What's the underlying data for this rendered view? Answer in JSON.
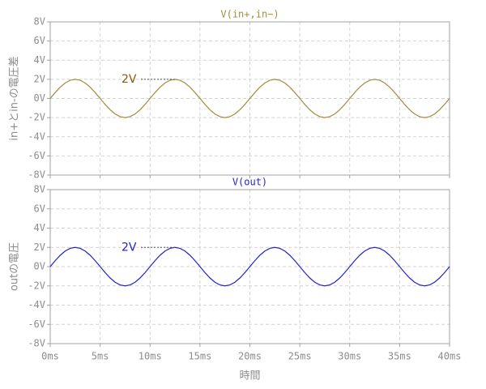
{
  "chart_data": [
    {
      "type": "line",
      "title": "V(in+,in−)",
      "ylabel": "in+とin-の電圧差",
      "grid": true,
      "xlim": [
        0,
        40
      ],
      "ylim": [
        -8,
        8
      ],
      "yticks": [
        {
          "value": -8,
          "label": "-8V"
        },
        {
          "value": -6,
          "label": "-6V"
        },
        {
          "value": -4,
          "label": "-4V"
        },
        {
          "value": -2,
          "label": "-2V"
        },
        {
          "value": 0,
          "label": "0V"
        },
        {
          "value": 2,
          "label": "2V"
        },
        {
          "value": 4,
          "label": "4V"
        },
        {
          "value": 6,
          "label": "6V"
        },
        {
          "value": 8,
          "label": "8V"
        }
      ],
      "x": [
        0,
        0.5,
        1,
        1.5,
        2,
        2.5,
        3,
        3.5,
        4,
        4.5,
        5,
        5.5,
        6,
        6.5,
        7,
        7.5,
        8,
        8.5,
        9,
        9.5,
        10,
        10.5,
        11,
        11.5,
        12,
        12.5,
        13,
        13.5,
        14,
        14.5,
        15,
        15.5,
        16,
        16.5,
        17,
        17.5,
        18,
        18.5,
        19,
        19.5,
        20,
        20.5,
        21,
        21.5,
        22,
        22.5,
        23,
        23.5,
        24,
        24.5,
        25,
        25.5,
        26,
        26.5,
        27,
        27.5,
        28,
        28.5,
        29,
        29.5,
        30,
        30.5,
        31,
        31.5,
        32,
        32.5,
        33,
        33.5,
        34,
        34.5,
        35,
        35.5,
        36,
        36.5,
        37,
        37.5,
        38,
        38.5,
        39,
        39.5,
        40
      ],
      "series": [
        {
          "color": "#a38c3c",
          "values": [
            0,
            0.62,
            1.18,
            1.62,
            1.9,
            2,
            1.9,
            1.62,
            1.18,
            0.62,
            0,
            -0.62,
            -1.18,
            -1.62,
            -1.9,
            -2,
            -1.9,
            -1.62,
            -1.18,
            -0.62,
            0,
            0.62,
            1.18,
            1.62,
            1.9,
            2,
            1.9,
            1.62,
            1.18,
            0.62,
            0,
            -0.62,
            -1.18,
            -1.62,
            -1.9,
            -2,
            -1.9,
            -1.62,
            -1.18,
            -0.62,
            0,
            0.62,
            1.18,
            1.62,
            1.9,
            2,
            1.9,
            1.62,
            1.18,
            0.62,
            0,
            -0.62,
            -1.18,
            -1.62,
            -1.9,
            -2,
            -1.9,
            -1.62,
            -1.18,
            -0.62,
            0,
            0.62,
            1.18,
            1.62,
            1.9,
            2,
            1.9,
            1.62,
            1.18,
            0.62,
            0,
            -0.62,
            -1.18,
            -1.62,
            -1.9,
            -2,
            -1.9,
            -1.62,
            -1.18,
            -0.62,
            0
          ]
        }
      ],
      "annotations": [
        {
          "text": "2V",
          "value": 2,
          "color": "#8a5a10"
        }
      ]
    },
    {
      "type": "line",
      "title": "V(out)",
      "ylabel": "outの電圧",
      "xlabel": "時間",
      "grid": true,
      "xlim": [
        0,
        40
      ],
      "xticks": [
        {
          "value": 0,
          "label": "0ms"
        },
        {
          "value": 5,
          "label": "5ms"
        },
        {
          "value": 10,
          "label": "10ms"
        },
        {
          "value": 15,
          "label": "15ms"
        },
        {
          "value": 20,
          "label": "20ms"
        },
        {
          "value": 25,
          "label": "25ms"
        },
        {
          "value": 30,
          "label": "30ms"
        },
        {
          "value": 35,
          "label": "35ms"
        },
        {
          "value": 40,
          "label": "40ms"
        }
      ],
      "ylim": [
        -8,
        8
      ],
      "yticks": [
        {
          "value": -8,
          "label": "-8V"
        },
        {
          "value": -6,
          "label": "-6V"
        },
        {
          "value": -4,
          "label": "-4V"
        },
        {
          "value": -2,
          "label": "-2V"
        },
        {
          "value": 0,
          "label": "0V"
        },
        {
          "value": 2,
          "label": "2V"
        },
        {
          "value": 4,
          "label": "4V"
        },
        {
          "value": 6,
          "label": "6V"
        },
        {
          "value": 8,
          "label": "8V"
        }
      ],
      "x": [
        0,
        0.5,
        1,
        1.5,
        2,
        2.5,
        3,
        3.5,
        4,
        4.5,
        5,
        5.5,
        6,
        6.5,
        7,
        7.5,
        8,
        8.5,
        9,
        9.5,
        10,
        10.5,
        11,
        11.5,
        12,
        12.5,
        13,
        13.5,
        14,
        14.5,
        15,
        15.5,
        16,
        16.5,
        17,
        17.5,
        18,
        18.5,
        19,
        19.5,
        20,
        20.5,
        21,
        21.5,
        22,
        22.5,
        23,
        23.5,
        24,
        24.5,
        25,
        25.5,
        26,
        26.5,
        27,
        27.5,
        28,
        28.5,
        29,
        29.5,
        30,
        30.5,
        31,
        31.5,
        32,
        32.5,
        33,
        33.5,
        34,
        34.5,
        35,
        35.5,
        36,
        36.5,
        37,
        37.5,
        38,
        38.5,
        39,
        39.5,
        40
      ],
      "series": [
        {
          "color": "#2323c8",
          "values": [
            0,
            0.62,
            1.18,
            1.62,
            1.9,
            2,
            1.9,
            1.62,
            1.18,
            0.62,
            0,
            -0.62,
            -1.18,
            -1.62,
            -1.9,
            -2,
            -1.9,
            -1.62,
            -1.18,
            -0.62,
            0,
            0.62,
            1.18,
            1.62,
            1.9,
            2,
            1.9,
            1.62,
            1.18,
            0.62,
            0,
            -0.62,
            -1.18,
            -1.62,
            -1.9,
            -2,
            -1.9,
            -1.62,
            -1.18,
            -0.62,
            0,
            0.62,
            1.18,
            1.62,
            1.9,
            2,
            1.9,
            1.62,
            1.18,
            0.62,
            0,
            -0.62,
            -1.18,
            -1.62,
            -1.9,
            -2,
            -1.9,
            -1.62,
            -1.18,
            -0.62,
            0,
            0.62,
            1.18,
            1.62,
            1.9,
            2,
            1.9,
            1.62,
            1.18,
            0.62,
            0,
            -0.62,
            -1.18,
            -1.62,
            -1.9,
            -2,
            -1.9,
            -1.62,
            -1.18,
            -0.62,
            0
          ]
        }
      ],
      "annotations": [
        {
          "text": "2V",
          "value": 2,
          "color": "#2323c8"
        }
      ]
    }
  ]
}
